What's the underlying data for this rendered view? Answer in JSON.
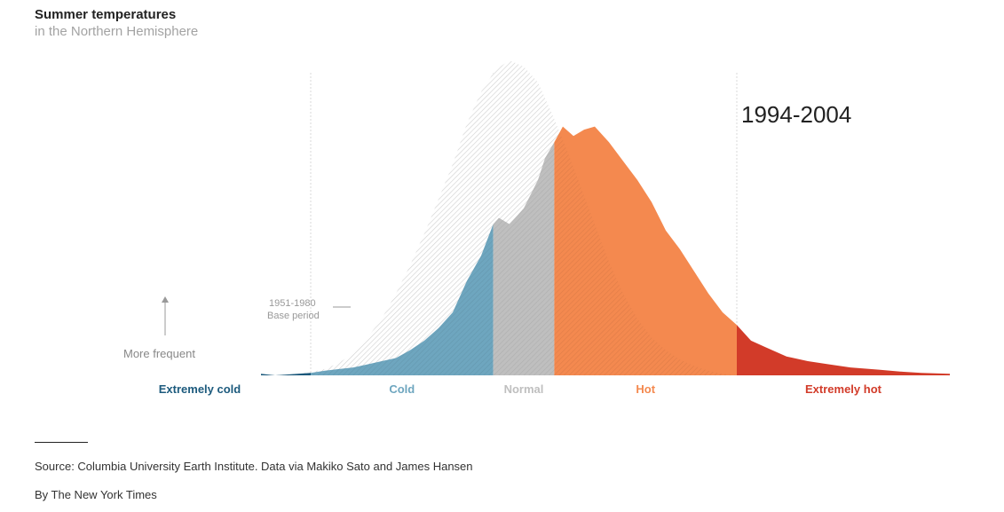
{
  "header": {
    "title": "Summer temperatures",
    "subtitle": "in the Northern Hemisphere"
  },
  "footer": {
    "source": "Source: Columbia University Earth Institute. Data via Makiko Sato and James Hansen",
    "credit": "By The New York Times"
  },
  "chart_data": {
    "type": "area",
    "period_label": "1994-2004",
    "baseline_label_line1": "1951-1980",
    "baseline_label_line2": "Base period",
    "frequency_label": "More frequent",
    "xlim": [
      -4,
      6
    ],
    "ylim": [
      0,
      1
    ],
    "grid": false,
    "categories": [
      {
        "label": "Extremely cold",
        "color": "#1c5a7d",
        "range": [
          -4,
          -3
        ]
      },
      {
        "label": "Cold",
        "color": "#6ea6bf",
        "range": [
          -3,
          -0.43
        ]
      },
      {
        "label": "Normal",
        "color": "#bfbfbf",
        "range": [
          -0.43,
          0.43
        ]
      },
      {
        "label": "Hot",
        "color": "#f4894f",
        "range": [
          0.43,
          3
        ]
      },
      {
        "label": "Extremely hot",
        "color": "#d23b29",
        "range": [
          3,
          6
        ]
      }
    ],
    "series": [
      {
        "label": "1951-1980",
        "style": "hatched",
        "x": [
          -3.6,
          -3.2,
          -3.0,
          -2.8,
          -2.6,
          -2.4,
          -2.2,
          -2.0,
          -1.8,
          -1.6,
          -1.4,
          -1.2,
          -1.0,
          -0.8,
          -0.6,
          -0.4,
          -0.2,
          0.0,
          0.2,
          0.4,
          0.6,
          0.8,
          1.0,
          1.2,
          1.4,
          1.6,
          1.8,
          2.0,
          2.2,
          2.4,
          2.6,
          2.8,
          3.0
        ],
        "y": [
          0.0,
          0.003,
          0.01,
          0.02,
          0.04,
          0.07,
          0.12,
          0.18,
          0.26,
          0.35,
          0.45,
          0.56,
          0.67,
          0.8,
          0.9,
          0.97,
          1.0,
          0.98,
          0.93,
          0.83,
          0.72,
          0.6,
          0.48,
          0.36,
          0.26,
          0.18,
          0.12,
          0.08,
          0.05,
          0.03,
          0.015,
          0.005,
          0.0
        ]
      },
      {
        "label": "1994-2004",
        "style": "filled",
        "x": [
          -3.7,
          -3.5,
          -3.3,
          -3.0,
          -2.8,
          -2.6,
          -2.4,
          -2.2,
          -2.0,
          -1.8,
          -1.6,
          -1.4,
          -1.2,
          -1.0,
          -0.8,
          -0.6,
          -0.43,
          -0.35,
          -0.2,
          0.0,
          0.2,
          0.3,
          0.43,
          0.55,
          0.7,
          0.85,
          1.0,
          1.2,
          1.4,
          1.6,
          1.8,
          2.0,
          2.2,
          2.4,
          2.6,
          2.8,
          3.0,
          3.2,
          3.4,
          3.7,
          4.0,
          4.3,
          4.6,
          5.0,
          5.3,
          5.6,
          6.0
        ],
        "y": [
          0.005,
          0.0,
          0.003,
          0.008,
          0.015,
          0.02,
          0.025,
          0.035,
          0.045,
          0.055,
          0.08,
          0.11,
          0.15,
          0.2,
          0.3,
          0.38,
          0.48,
          0.5,
          0.48,
          0.53,
          0.62,
          0.69,
          0.74,
          0.79,
          0.76,
          0.78,
          0.79,
          0.74,
          0.68,
          0.62,
          0.55,
          0.46,
          0.4,
          0.33,
          0.26,
          0.2,
          0.16,
          0.11,
          0.09,
          0.06,
          0.045,
          0.035,
          0.025,
          0.018,
          0.012,
          0.008,
          0.005
        ]
      }
    ]
  }
}
